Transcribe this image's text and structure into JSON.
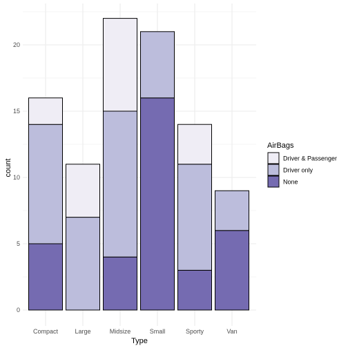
{
  "chart_data": {
    "type": "bar",
    "stacked": true,
    "xlabel": "Type",
    "ylabel": "count",
    "categories": [
      "Compact",
      "Large",
      "Midsize",
      "Small",
      "Sporty",
      "Van"
    ],
    "series": [
      {
        "name": "None",
        "values": [
          5,
          0,
          4,
          16,
          3,
          6
        ],
        "color": "#756bb1"
      },
      {
        "name": "Driver only",
        "values": [
          9,
          7,
          11,
          5,
          8,
          3
        ],
        "color": "#bcbddc"
      },
      {
        "name": "Driver & Passenger",
        "values": [
          2,
          4,
          7,
          0,
          3,
          0
        ],
        "color": "#efedf5"
      }
    ],
    "ylim": [
      0,
      22
    ],
    "yticks": [
      0,
      5,
      10,
      15,
      20
    ],
    "legend": {
      "title": "AirBags",
      "placement": "right",
      "order": [
        "Driver & Passenger",
        "Driver only",
        "None"
      ]
    },
    "grid": true,
    "colors": {
      "grid": "#ebebeb",
      "bar_border": "#000000",
      "tick_text": "#4d4d4d"
    }
  }
}
